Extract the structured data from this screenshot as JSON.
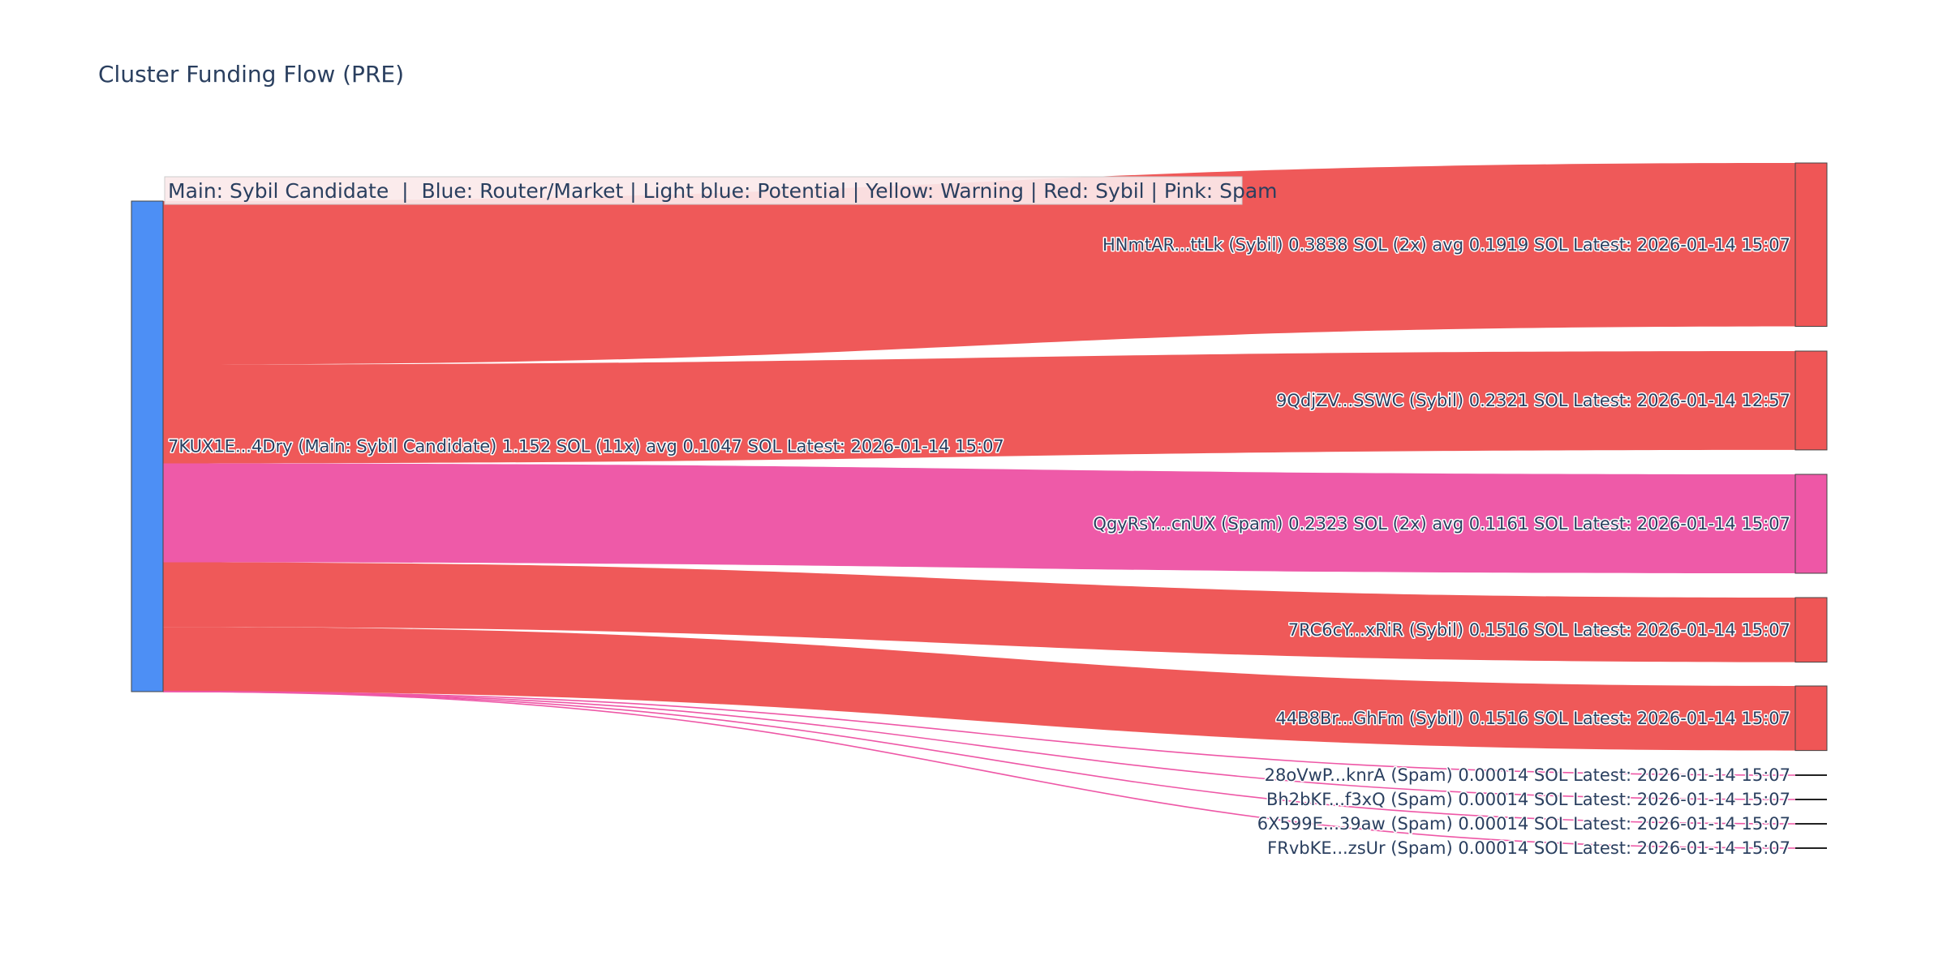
{
  "chart_data": {
    "type": "sankey",
    "title": "Cluster Funding Flow (PRE)",
    "annotation": "Main: Sybil Candidate  |  Blue: Router/Market | Light blue: Potential | Yellow: Warning | Red: Sybil | Pink: Spam",
    "colors": {
      "router": "#4d8ff5",
      "sybil": "#ef5656",
      "spam": "#ee57a6",
      "node_border": "#444444",
      "title": "#2a3f5f",
      "annotation_bg": "#fbe9ea"
    },
    "source": {
      "id": "src",
      "category": "router",
      "label": "7KUX1E...4Dry (Main: Sybil Candidate) 1.152 SOL (11x) avg 0.1047 SOL Latest: 2026-01-14 15:07",
      "value": 1.152
    },
    "targets": [
      {
        "id": "t1",
        "category": "sybil",
        "value": 0.3838,
        "label": "HNmtAR...ttLk (Sybil) 0.3838 SOL (2x) avg 0.1919 SOL Latest: 2026-01-14 15:07"
      },
      {
        "id": "t2",
        "category": "sybil",
        "value": 0.2321,
        "label": "9QdjZV...SSWC (Sybil) 0.2321 SOL Latest: 2026-01-14 12:57"
      },
      {
        "id": "t3",
        "category": "spam",
        "value": 0.2323,
        "label": "QgyRsY...cnUX (Spam) 0.2323 SOL (2x) avg 0.1161 SOL Latest: 2026-01-14 15:07"
      },
      {
        "id": "t4",
        "category": "sybil",
        "value": 0.1516,
        "label": "7RC6cY...xRiR (Sybil) 0.1516 SOL Latest: 2026-01-14 15:07"
      },
      {
        "id": "t5",
        "category": "sybil",
        "value": 0.1516,
        "label": "44B8Br...GhFm (Sybil) 0.1516 SOL Latest: 2026-01-14 15:07"
      },
      {
        "id": "t6",
        "category": "spam",
        "value": 0.00014,
        "label": "28oVwP...knrA (Spam) 0.00014 SOL Latest: 2026-01-14 15:07"
      },
      {
        "id": "t7",
        "category": "spam",
        "value": 0.00014,
        "label": "Bh2bKF...f3xQ (Spam) 0.00014 SOL Latest: 2026-01-14 15:07"
      },
      {
        "id": "t8",
        "category": "spam",
        "value": 0.00014,
        "label": "6X599E...39aw (Spam) 0.00014 SOL Latest: 2026-01-14 15:07"
      },
      {
        "id": "t9",
        "category": "spam",
        "value": 0.00014,
        "label": "FRvbKE...zsUr (Spam) 0.00014 SOL Latest: 2026-01-14 15:07"
      }
    ]
  }
}
